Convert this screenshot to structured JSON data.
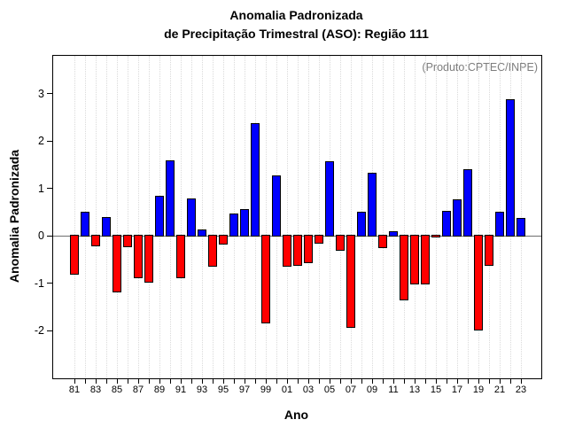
{
  "chart_data": {
    "type": "bar",
    "title": "Anomalia Padronizada de Precipitação Trimestral (ASO): Região 111",
    "title_lines": [
      "Anomalia Padronizada",
      "de Precipitação Trimestral (ASO): Região 111"
    ],
    "annotation": "(Produto:CPTEC/INPE)",
    "xlabel": "Ano",
    "ylabel": "Anomalia Padronizada",
    "categories": [
      "81",
      "82",
      "83",
      "84",
      "85",
      "86",
      "87",
      "88",
      "89",
      "90",
      "91",
      "92",
      "93",
      "94",
      "95",
      "96",
      "97",
      "98",
      "99",
      "00",
      "01",
      "02",
      "03",
      "04",
      "05",
      "06",
      "07",
      "08",
      "09",
      "10",
      "11",
      "12",
      "13",
      "14",
      "15",
      "16",
      "17",
      "18",
      "19",
      "20",
      "21",
      "22",
      "23"
    ],
    "values": [
      -0.8,
      0.49,
      -0.2,
      0.37,
      -1.18,
      -0.22,
      -0.87,
      -0.97,
      0.82,
      1.57,
      -0.88,
      0.77,
      0.11,
      -0.63,
      -0.17,
      0.44,
      0.55,
      2.36,
      -1.84,
      1.26,
      -0.63,
      -0.62,
      -0.56,
      -0.15,
      1.55,
      -0.29,
      -1.92,
      0.48,
      1.31,
      -0.25,
      0.07,
      -1.34,
      -1.01,
      -1.0,
      -0.02,
      0.51,
      0.75,
      1.38,
      -1.98,
      -0.62,
      0.49,
      2.86,
      0.36
    ],
    "x_tick_labels_shown": [
      "81",
      "83",
      "85",
      "87",
      "89",
      "91",
      "93",
      "95",
      "97",
      "99",
      "01",
      "03",
      "05",
      "07",
      "09",
      "11",
      "13",
      "15",
      "17",
      "19",
      "21",
      "23"
    ],
    "yticks": [
      "3",
      "2",
      "1",
      "0",
      "-1",
      "-2"
    ],
    "ytick_values": [
      3,
      2,
      1,
      0,
      -1,
      -2
    ],
    "ylim": [
      -3.0,
      3.8
    ],
    "grid": "vertical-dotted",
    "legend": "none",
    "colors": {
      "positive": "#0000ff",
      "negative": "#ff0000",
      "bar_border": "#000000",
      "annotation": "#7d7d7d",
      "grid": "#dadada",
      "zero_line": "#6e6e6e",
      "frame": "#000000"
    }
  }
}
